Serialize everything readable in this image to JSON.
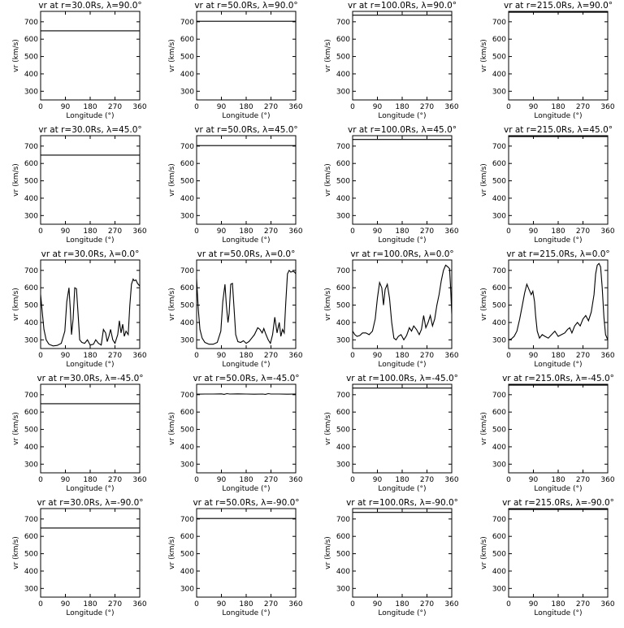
{
  "chart_data": {
    "type": "line",
    "layout": "5x4 grid of panels",
    "common": {
      "xlabel": "Longitude (°)",
      "ylabel": "vr (km/s)",
      "xlim": [
        0,
        360
      ],
      "ylim": [
        250,
        760
      ],
      "xticks": [
        0,
        90,
        180,
        270,
        360
      ],
      "yticks": [
        300,
        400,
        500,
        600,
        700
      ],
      "line_color": "#000000",
      "grid": false
    },
    "panels": [
      {
        "title": "vr at r=30.0Rs, λ=90.0°",
        "row": 0,
        "col": 0,
        "x": [
          0,
          360
        ],
        "y": [
          648,
          648
        ]
      },
      {
        "title": "vr at r=50.0Rs, λ=90.0°",
        "row": 0,
        "col": 1,
        "x": [
          0,
          360
        ],
        "y": [
          703,
          703
        ]
      },
      {
        "title": "vr at r=100.0Rs, λ=90.0°",
        "row": 0,
        "col": 2,
        "x": [
          0,
          360
        ],
        "y": [
          738,
          738
        ]
      },
      {
        "title": "vr at r=215.0Rs, λ=90.0°",
        "row": 0,
        "col": 3,
        "x": [
          0,
          360
        ],
        "y": [
          755,
          755
        ]
      },
      {
        "title": "vr at r=30.0Rs, λ=45.0°",
        "row": 1,
        "col": 0,
        "x": [
          0,
          360
        ],
        "y": [
          648,
          648
        ]
      },
      {
        "title": "vr at r=50.0Rs, λ=45.0°",
        "row": 1,
        "col": 1,
        "x": [
          0,
          360
        ],
        "y": [
          703,
          703
        ]
      },
      {
        "title": "vr at r=100.0Rs, λ=45.0°",
        "row": 1,
        "col": 2,
        "x": [
          0,
          360
        ],
        "y": [
          738,
          738
        ]
      },
      {
        "title": "vr at r=215.0Rs, λ=45.0°",
        "row": 1,
        "col": 3,
        "x": [
          0,
          360
        ],
        "y": [
          755,
          755
        ]
      },
      {
        "title": "vr at r=30.0Rs, λ=0.0°",
        "row": 2,
        "col": 0,
        "x": [
          0,
          6,
          12,
          20,
          30,
          45,
          60,
          75,
          88,
          95,
          103,
          108,
          112,
          118,
          124,
          130,
          136,
          142,
          150,
          160,
          170,
          180,
          192,
          200,
          210,
          220,
          228,
          236,
          242,
          248,
          254,
          262,
          270,
          280,
          286,
          292,
          298,
          304,
          310,
          318,
          324,
          330,
          336,
          340,
          346,
          352,
          360
        ],
        "y": [
          560,
          460,
          360,
          300,
          275,
          265,
          268,
          280,
          350,
          520,
          600,
          470,
          330,
          420,
          600,
          595,
          450,
          300,
          285,
          280,
          300,
          270,
          275,
          300,
          280,
          270,
          360,
          340,
          290,
          320,
          360,
          300,
          280,
          330,
          410,
          340,
          390,
          320,
          350,
          330,
          500,
          620,
          650,
          640,
          645,
          625,
          610
        ]
      },
      {
        "title": "vr at r=50.0Rs, λ=0.0°",
        "row": 2,
        "col": 1,
        "x": [
          0,
          6,
          12,
          20,
          30,
          45,
          60,
          75,
          88,
          95,
          103,
          108,
          114,
          118,
          124,
          130,
          136,
          142,
          150,
          160,
          170,
          180,
          190,
          200,
          210,
          222,
          230,
          238,
          244,
          252,
          260,
          268,
          276,
          284,
          292,
          300,
          306,
          312,
          318,
          324,
          330,
          336,
          342,
          350,
          356,
          360
        ],
        "y": [
          650,
          480,
          360,
          310,
          285,
          275,
          275,
          285,
          350,
          520,
          620,
          500,
          400,
          450,
          620,
          625,
          480,
          330,
          290,
          285,
          295,
          280,
          290,
          310,
          330,
          370,
          360,
          340,
          365,
          330,
          300,
          280,
          330,
          430,
          340,
          400,
          320,
          360,
          340,
          520,
          680,
          700,
          690,
          695,
          690,
          680
        ]
      },
      {
        "title": "vr at r=100.0Rs, λ=0.0°",
        "row": 2,
        "col": 2,
        "x": [
          0,
          8,
          16,
          26,
          36,
          48,
          60,
          72,
          82,
          90,
          98,
          106,
          112,
          118,
          126,
          134,
          142,
          150,
          158,
          166,
          176,
          186,
          196,
          206,
          214,
          222,
          232,
          242,
          250,
          258,
          266,
          274,
          282,
          290,
          298,
          306,
          314,
          322,
          330,
          338,
          346,
          352,
          356,
          360
        ],
        "y": [
          350,
          330,
          320,
          325,
          340,
          340,
          330,
          350,
          420,
          540,
          630,
          600,
          500,
          590,
          620,
          540,
          400,
          310,
          300,
          320,
          330,
          300,
          325,
          370,
          350,
          380,
          360,
          330,
          360,
          440,
          370,
          400,
          440,
          380,
          420,
          500,
          560,
          640,
          700,
          730,
          720,
          710,
          600,
          450
        ]
      },
      {
        "title": "vr at r=215.0Rs, λ=0.0°",
        "row": 2,
        "col": 3,
        "x": [
          0,
          10,
          20,
          30,
          40,
          50,
          58,
          66,
          74,
          82,
          88,
          94,
          98,
          104,
          112,
          122,
          132,
          144,
          156,
          168,
          180,
          192,
          204,
          214,
          222,
          230,
          240,
          250,
          260,
          270,
          280,
          290,
          300,
          310,
          316,
          322,
          328,
          334,
          340,
          346,
          352,
          360
        ],
        "y": [
          300,
          305,
          320,
          350,
          420,
          500,
          570,
          620,
          590,
          560,
          580,
          520,
          440,
          350,
          310,
          330,
          320,
          310,
          330,
          350,
          320,
          330,
          340,
          360,
          370,
          340,
          380,
          400,
          380,
          420,
          440,
          410,
          460,
          560,
          680,
          730,
          740,
          720,
          600,
          430,
          330,
          300
        ]
      },
      {
        "title": "vr at r=30.0Rs, λ=-45.0°",
        "row": 3,
        "col": 0,
        "x": [
          0,
          360
        ],
        "y": [
          648,
          648
        ]
      },
      {
        "title": "vr at r=50.0Rs, λ=-45.0°",
        "row": 3,
        "col": 1,
        "x": [
          0,
          30,
          60,
          90,
          100,
          110,
          120,
          150,
          180,
          210,
          240,
          250,
          260,
          270,
          300,
          330,
          360
        ],
        "y": [
          703,
          704,
          704,
          705,
          702,
          706,
          704,
          705,
          704,
          703,
          704,
          702,
          706,
          704,
          704,
          703,
          704
        ]
      },
      {
        "title": "vr at r=100.0Rs, λ=-45.0°",
        "row": 3,
        "col": 2,
        "x": [
          0,
          360
        ],
        "y": [
          738,
          738
        ]
      },
      {
        "title": "vr at r=215.0Rs, λ=-45.0°",
        "row": 3,
        "col": 3,
        "x": [
          0,
          360
        ],
        "y": [
          755,
          755
        ]
      },
      {
        "title": "vr at r=30.0Rs, λ=-90.0°",
        "row": 4,
        "col": 0,
        "x": [
          0,
          360
        ],
        "y": [
          648,
          648
        ]
      },
      {
        "title": "vr at r=50.0Rs, λ=-90.0°",
        "row": 4,
        "col": 1,
        "x": [
          0,
          360
        ],
        "y": [
          703,
          703
        ]
      },
      {
        "title": "vr at r=100.0Rs, λ=-90.0°",
        "row": 4,
        "col": 2,
        "x": [
          0,
          360
        ],
        "y": [
          738,
          738
        ]
      },
      {
        "title": "vr at r=215.0Rs, λ=-90.0°",
        "row": 4,
        "col": 3,
        "x": [
          0,
          360
        ],
        "y": [
          755,
          755
        ]
      }
    ]
  }
}
